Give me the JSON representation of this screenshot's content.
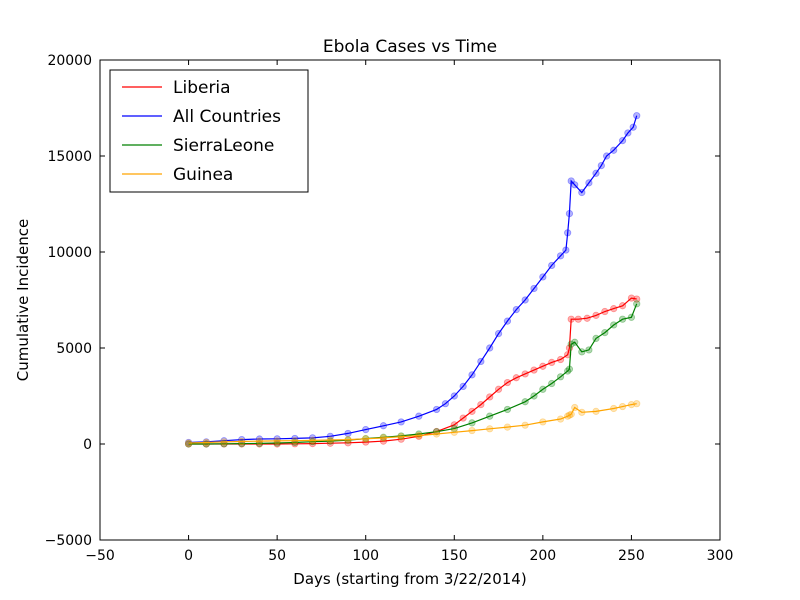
{
  "chart_data": {
    "type": "line",
    "title": "Ebola Cases vs Time",
    "xlabel": "Days (starting from 3/22/2014)",
    "ylabel": "Cumulative Incidence",
    "xlim": [
      -50,
      300
    ],
    "ylim": [
      -5000,
      20000
    ],
    "xticks": [
      -50,
      0,
      50,
      100,
      150,
      200,
      250,
      300
    ],
    "yticks": [
      -5000,
      0,
      5000,
      10000,
      15000,
      20000
    ],
    "xtick_labels": [
      "−50",
      "0",
      "50",
      "100",
      "150",
      "200",
      "250",
      "300"
    ],
    "ytick_labels": [
      "−5000",
      "0",
      "5000",
      "10000",
      "15000",
      "20000"
    ],
    "grid": false,
    "legend_position": "top-left",
    "markers": "semi-transparent circles on each observation",
    "series": [
      {
        "name": "Liberia",
        "color": "#ff0000",
        "x": [
          0,
          10,
          20,
          30,
          40,
          50,
          60,
          70,
          80,
          90,
          100,
          110,
          120,
          130,
          140,
          150,
          155,
          160,
          165,
          170,
          175,
          180,
          185,
          190,
          195,
          200,
          205,
          210,
          214,
          215,
          216,
          220,
          225,
          230,
          235,
          240,
          245,
          250,
          253
        ],
        "y": [
          0,
          0,
          0,
          0,
          0,
          0,
          10,
          20,
          40,
          60,
          100,
          150,
          250,
          400,
          650,
          1000,
          1350,
          1700,
          2050,
          2450,
          2850,
          3200,
          3450,
          3650,
          3850,
          4050,
          4250,
          4400,
          4650,
          5000,
          6500,
          6500,
          6550,
          6700,
          6900,
          7050,
          7200,
          7600,
          7550
        ]
      },
      {
        "name": "All Countries",
        "color": "#0000ff",
        "x": [
          0,
          10,
          20,
          30,
          40,
          50,
          60,
          70,
          80,
          90,
          100,
          110,
          120,
          130,
          140,
          145,
          150,
          155,
          160,
          165,
          170,
          175,
          180,
          185,
          190,
          195,
          200,
          205,
          210,
          213,
          214,
          215,
          216,
          218,
          222,
          226,
          230,
          233,
          236,
          240,
          245,
          248,
          251,
          253
        ],
        "y": [
          80,
          110,
          170,
          230,
          260,
          270,
          290,
          320,
          400,
          550,
          750,
          950,
          1150,
          1450,
          1800,
          2100,
          2500,
          3000,
          3600,
          4300,
          5000,
          5750,
          6400,
          7000,
          7500,
          8100,
          8700,
          9300,
          9800,
          10100,
          11000,
          12000,
          13700,
          13500,
          13100,
          13600,
          14100,
          14500,
          15000,
          15300,
          15800,
          16200,
          16500,
          17100
        ]
      },
      {
        "name": "SierraLeone",
        "color": "#008000",
        "x": [
          0,
          10,
          20,
          30,
          40,
          50,
          60,
          70,
          80,
          90,
          100,
          110,
          120,
          130,
          140,
          150,
          160,
          170,
          180,
          190,
          195,
          200,
          205,
          210,
          214,
          215,
          216,
          218,
          222,
          226,
          230,
          235,
          240,
          245,
          250,
          253
        ],
        "y": [
          0,
          0,
          10,
          20,
          30,
          50,
          80,
          120,
          150,
          200,
          280,
          350,
          420,
          520,
          640,
          800,
          1100,
          1450,
          1800,
          2200,
          2500,
          2850,
          3150,
          3500,
          3800,
          3900,
          5200,
          5300,
          4800,
          4900,
          5500,
          5800,
          6200,
          6500,
          6600,
          7300
        ]
      },
      {
        "name": "Guinea",
        "color": "#ffa500",
        "x": [
          0,
          10,
          20,
          30,
          40,
          50,
          60,
          70,
          80,
          90,
          100,
          110,
          120,
          130,
          140,
          150,
          160,
          170,
          180,
          190,
          200,
          210,
          214,
          215,
          216,
          218,
          222,
          230,
          240,
          245,
          250,
          253
        ],
        "y": [
          50,
          80,
          110,
          130,
          150,
          160,
          170,
          190,
          210,
          230,
          270,
          320,
          380,
          440,
          520,
          610,
          700,
          790,
          880,
          980,
          1150,
          1300,
          1450,
          1500,
          1550,
          1900,
          1650,
          1700,
          1850,
          1950,
          2050,
          2100
        ]
      }
    ]
  }
}
